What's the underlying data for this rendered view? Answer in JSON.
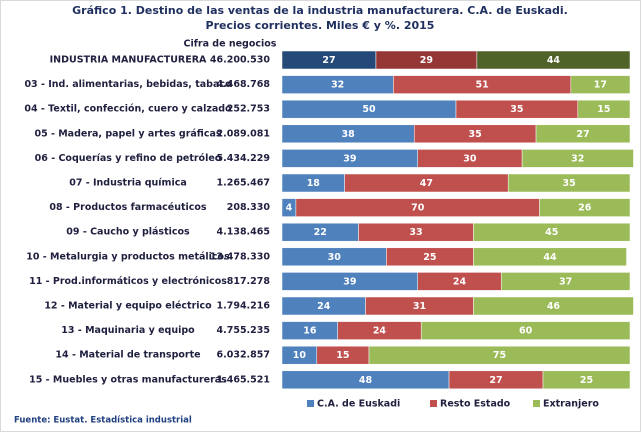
{
  "chart_data": {
    "type": "stacked-bar-horizontal",
    "title": "Gráfico 1. Destino de las ventas de la industria manufacturera. C.A. de Euskadi.",
    "subtitle": "Precios corrientes. Miles € y %.  2015",
    "turnover_header": "Cifra de negocios",
    "source": "Fuente: Eustat. Estadística industrial",
    "categories": [
      "INDUSTRIA MANUFACTURERA",
      "03 - Ind. alimentarias, bebidas, tabaco",
      "04 - Textil, confección, cuero y calzado",
      "05 - Madera, papel y artes gráficas",
      "06 - Coquerías y refino de petróleo",
      "07 - Industria química",
      "08 - Productos farmacéuticos",
      "09 - Caucho y plásticos",
      "10 - Metalurgia y productos metálicos",
      "11 - Prod.informáticos y electrónicos",
      "12 - Material y equipo eléctrico",
      "13 - Maquinaria y equipo",
      "14 - Material de transporte",
      "15 - Muebles y otras manufactureras"
    ],
    "turnover": [
      "46.200.530",
      "4.468.768",
      "252.753",
      "2.089.081",
      "5.434.229",
      "1.265.467",
      "208.330",
      "4.138.465",
      "13.478.330",
      "817.278",
      "1.794.216",
      "4.755.235",
      "6.032.857",
      "1.465.521"
    ],
    "highlight_index": 0,
    "xlim": [
      0,
      100
    ],
    "series": [
      {
        "name": "C.A. de Euskadi",
        "color": "#4f81bd",
        "highlight_color": "#254a7a",
        "values": [
          27,
          32,
          50,
          38,
          39,
          18,
          4,
          22,
          30,
          39,
          24,
          16,
          10,
          48
        ]
      },
      {
        "name": "Resto Estado",
        "color": "#c0504d",
        "highlight_color": "#953735",
        "values": [
          29,
          51,
          35,
          35,
          30,
          47,
          70,
          33,
          25,
          24,
          31,
          24,
          15,
          27
        ]
      },
      {
        "name": "Extranjero",
        "color": "#9bbb59",
        "highlight_color": "#4f6228",
        "values": [
          44,
          17,
          15,
          27,
          32,
          35,
          26,
          45,
          44,
          37,
          46,
          60,
          75,
          25
        ]
      }
    ]
  }
}
